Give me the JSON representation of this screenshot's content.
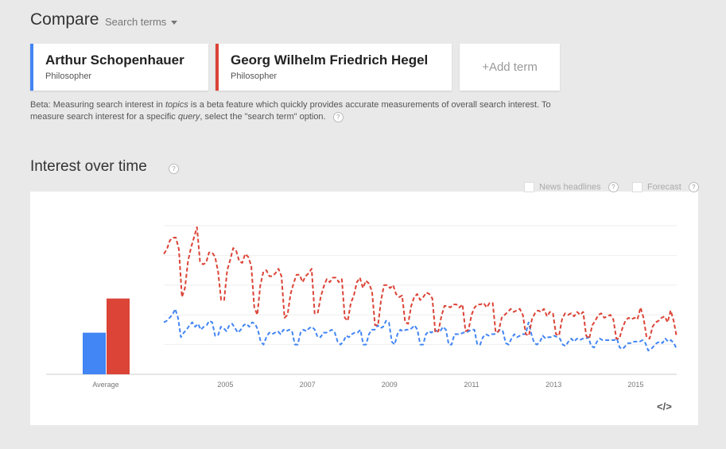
{
  "header": {
    "title": "Compare",
    "search_terms_label": "Search terms"
  },
  "terms": [
    {
      "name": "Arthur Schopenhauer",
      "type": "Philosopher",
      "color": "#4285f4"
    },
    {
      "name": "Georg Wilhelm Friedrich Hegel",
      "type": "Philosopher",
      "color": "#db4437"
    }
  ],
  "add_term_label": "Add term",
  "beta_note": {
    "part1": "Beta: Measuring search interest in ",
    "topics": "topics",
    "part2": " is a beta feature which quickly provides accurate measurements of overall search interest. To measure search interest for a specific ",
    "query": "query",
    "part3": ", select the \"search term\" option."
  },
  "section_title": "Interest over time",
  "legend_options": {
    "news": "News headlines",
    "forecast": "Forecast"
  },
  "help_glyph": "?",
  "embed_label": "</>",
  "chart_data": {
    "type": "line",
    "x_tick_labels": [
      "2005",
      "2007",
      "2009",
      "2011",
      "2013",
      "2015"
    ],
    "average_label": "Average",
    "averages": [
      {
        "name": "Arthur Schopenhauer",
        "value": 28,
        "color": "#4285f4"
      },
      {
        "name": "Georg Wilhelm Friedrich Hegel",
        "value": 51,
        "color": "#db4437"
      }
    ],
    "ylim": [
      0,
      100
    ],
    "x_start": 2004.0,
    "x_end": 2016.5,
    "series": [
      {
        "name": "Arthur Schopenhauer",
        "color": "#4285f4",
        "values": [
          35,
          36,
          38,
          40,
          44,
          38,
          25,
          28,
          30,
          33,
          35,
          32,
          34,
          30,
          32,
          33,
          36,
          35,
          26,
          26,
          32,
          31,
          29,
          33,
          34,
          31,
          28,
          30,
          33,
          34,
          32,
          35,
          34,
          30,
          22,
          20,
          25,
          28,
          27,
          28,
          29,
          27,
          30,
          29,
          30,
          29,
          20,
          20,
          28,
          30,
          29,
          31,
          32,
          30,
          25,
          25,
          28,
          28,
          29,
          30,
          28,
          22,
          20,
          22,
          26,
          25,
          27,
          28,
          28,
          30,
          20,
          20,
          27,
          30,
          30,
          33,
          31,
          32,
          36,
          35,
          22,
          20,
          27,
          30,
          29,
          30,
          30,
          31,
          33,
          30,
          20,
          20,
          27,
          29,
          28,
          30,
          29,
          29,
          32,
          30,
          20,
          20,
          27,
          27,
          27,
          28,
          28,
          29,
          30,
          30,
          20,
          20,
          25,
          27,
          26,
          27,
          27,
          28,
          30,
          29,
          21,
          20,
          24,
          27,
          25,
          26,
          27,
          27,
          35,
          27,
          21,
          20,
          22,
          26,
          24,
          25,
          25,
          26,
          25,
          24,
          20,
          19,
          22,
          24,
          22,
          24,
          23,
          24,
          24,
          25,
          19,
          18,
          22,
          24,
          23,
          23,
          23,
          23,
          23,
          24,
          18,
          17,
          19,
          21,
          21,
          22,
          22,
          22,
          23,
          21,
          16,
          17,
          19,
          21,
          22,
          21,
          24,
          22,
          23,
          21,
          17
        ]
      },
      {
        "name": "Georg Wilhelm Friedrich Hegel",
        "color": "#db4437",
        "values": [
          81,
          84,
          90,
          92,
          92,
          84,
          52,
          58,
          76,
          85,
          92,
          99,
          76,
          74,
          75,
          82,
          82,
          79,
          69,
          50,
          50,
          70,
          77,
          85,
          83,
          76,
          75,
          81,
          79,
          73,
          45,
          40,
          60,
          69,
          70,
          66,
          66,
          68,
          71,
          66,
          38,
          40,
          54,
          61,
          67,
          67,
          62,
          66,
          68,
          71,
          41,
          41,
          52,
          59,
          64,
          62,
          65,
          65,
          62,
          64,
          38,
          36,
          48,
          53,
          62,
          65,
          58,
          63,
          61,
          56,
          33,
          33,
          50,
          60,
          60,
          58,
          60,
          54,
          52,
          53,
          35,
          34,
          46,
          52,
          54,
          50,
          52,
          55,
          54,
          51,
          28,
          29,
          39,
          46,
          46,
          45,
          47,
          47,
          45,
          47,
          29,
          30,
          40,
          45,
          47,
          47,
          48,
          45,
          48,
          48,
          28,
          29,
          38,
          40,
          42,
          44,
          42,
          43,
          44,
          40,
          27,
          26,
          37,
          41,
          43,
          42,
          44,
          39,
          42,
          41,
          27,
          26,
          37,
          41,
          40,
          41,
          39,
          42,
          40,
          42,
          26,
          24,
          33,
          36,
          40,
          41,
          38,
          39,
          40,
          37,
          24,
          24,
          31,
          36,
          38,
          37,
          38,
          37,
          45,
          38,
          25,
          24,
          32,
          35,
          36,
          38,
          39,
          35,
          43,
          36,
          25
        ]
      }
    ]
  }
}
